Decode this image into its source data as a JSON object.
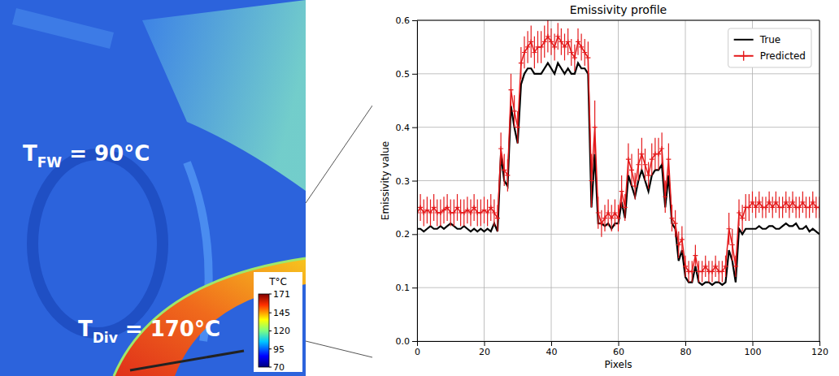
{
  "chart_data": [
    {
      "type": "image",
      "annotations": [
        {
          "main": "T",
          "sub": "FW",
          "text": " = 90°C"
        },
        {
          "main": "T",
          "sub": "Div",
          "text": " = 170°C"
        }
      ],
      "colorbar": {
        "title": "T°C",
        "range": [
          70,
          171
        ],
        "ticks": [
          171,
          145,
          120,
          95,
          70
        ]
      }
    },
    {
      "type": "line",
      "title": "Emissivity profile",
      "x_label": "Pixels",
      "y_label": "Emissivity value",
      "x": [
        0,
        1,
        2,
        3,
        4,
        5,
        6,
        7,
        8,
        9,
        10,
        11,
        12,
        13,
        14,
        15,
        16,
        17,
        18,
        19,
        20,
        21,
        22,
        23,
        24,
        25,
        26,
        27,
        28,
        29,
        30,
        31,
        32,
        33,
        34,
        35,
        36,
        37,
        38,
        39,
        40,
        41,
        42,
        43,
        44,
        45,
        46,
        47,
        48,
        49,
        50,
        51,
        52,
        53,
        54,
        55,
        56,
        57,
        58,
        59,
        60,
        61,
        62,
        63,
        64,
        65,
        66,
        67,
        68,
        69,
        70,
        71,
        72,
        73,
        74,
        75,
        76,
        77,
        78,
        79,
        80,
        81,
        82,
        83,
        84,
        85,
        86,
        87,
        88,
        89,
        90,
        91,
        92,
        93,
        94,
        95,
        96,
        97,
        98,
        99,
        100,
        101,
        102,
        103,
        104,
        105,
        106,
        107,
        108,
        109,
        110,
        111,
        112,
        113,
        114,
        115,
        116,
        117,
        118,
        119,
        120
      ],
      "series": [
        {
          "name": "True",
          "color": "#000000",
          "line_style": "solid",
          "values": [
            0.21,
            0.21,
            0.205,
            0.21,
            0.215,
            0.21,
            0.21,
            0.215,
            0.21,
            0.215,
            0.22,
            0.215,
            0.21,
            0.21,
            0.215,
            0.21,
            0.205,
            0.21,
            0.205,
            0.21,
            0.205,
            0.21,
            0.205,
            0.22,
            0.205,
            0.35,
            0.3,
            0.29,
            0.44,
            0.4,
            0.37,
            0.48,
            0.5,
            0.51,
            0.51,
            0.5,
            0.5,
            0.5,
            0.51,
            0.52,
            0.51,
            0.5,
            0.52,
            0.51,
            0.5,
            0.51,
            0.5,
            0.5,
            0.52,
            0.51,
            0.51,
            0.5,
            0.25,
            0.35,
            0.22,
            0.22,
            0.215,
            0.22,
            0.21,
            0.22,
            0.22,
            0.26,
            0.23,
            0.31,
            0.29,
            0.27,
            0.3,
            0.32,
            0.3,
            0.28,
            0.31,
            0.32,
            0.32,
            0.33,
            0.25,
            0.31,
            0.22,
            0.21,
            0.15,
            0.17,
            0.12,
            0.11,
            0.11,
            0.14,
            0.11,
            0.105,
            0.11,
            0.11,
            0.105,
            0.11,
            0.11,
            0.105,
            0.11,
            0.17,
            0.15,
            0.11,
            0.21,
            0.2,
            0.21,
            0.21,
            0.21,
            0.21,
            0.215,
            0.21,
            0.21,
            0.215,
            0.215,
            0.21,
            0.21,
            0.215,
            0.22,
            0.215,
            0.215,
            0.22,
            0.21,
            0.21,
            0.215,
            0.205,
            0.21,
            0.205,
            0.2
          ]
        },
        {
          "name": "Predicted",
          "color": "#e41a1c",
          "line_style": "solid",
          "marker": "plus",
          "values": [
            0.24,
            0.25,
            0.24,
            0.245,
            0.24,
            0.25,
            0.24,
            0.24,
            0.245,
            0.25,
            0.24,
            0.24,
            0.25,
            0.24,
            0.24,
            0.245,
            0.24,
            0.25,
            0.24,
            0.24,
            0.245,
            0.24,
            0.25,
            0.24,
            0.23,
            0.36,
            0.32,
            0.31,
            0.47,
            0.43,
            0.4,
            0.52,
            0.54,
            0.55,
            0.56,
            0.54,
            0.55,
            0.55,
            0.56,
            0.57,
            0.56,
            0.55,
            0.57,
            0.56,
            0.55,
            0.56,
            0.54,
            0.53,
            0.56,
            0.55,
            0.54,
            0.53,
            0.3,
            0.4,
            0.24,
            0.22,
            0.23,
            0.24,
            0.23,
            0.24,
            0.23,
            0.28,
            0.25,
            0.34,
            0.32,
            0.29,
            0.33,
            0.35,
            0.33,
            0.31,
            0.34,
            0.35,
            0.35,
            0.36,
            0.27,
            0.34,
            0.23,
            0.22,
            0.18,
            0.19,
            0.14,
            0.13,
            0.13,
            0.16,
            0.13,
            0.13,
            0.14,
            0.13,
            0.13,
            0.14,
            0.13,
            0.13,
            0.14,
            0.21,
            0.18,
            0.14,
            0.24,
            0.23,
            0.25,
            0.25,
            0.26,
            0.25,
            0.26,
            0.25,
            0.25,
            0.26,
            0.25,
            0.26,
            0.25,
            0.25,
            0.26,
            0.25,
            0.26,
            0.25,
            0.25,
            0.26,
            0.25,
            0.25,
            0.26,
            0.25,
            0.25
          ],
          "errors": [
            0.025,
            0.025,
            0.025,
            0.025,
            0.025,
            0.025,
            0.025,
            0.025,
            0.025,
            0.025,
            0.025,
            0.025,
            0.025,
            0.025,
            0.025,
            0.025,
            0.025,
            0.025,
            0.025,
            0.025,
            0.025,
            0.025,
            0.025,
            0.025,
            0.025,
            0.03,
            0.03,
            0.03,
            0.03,
            0.03,
            0.03,
            0.03,
            0.03,
            0.03,
            0.03,
            0.03,
            0.03,
            0.03,
            0.03,
            0.03,
            0.025,
            0.025,
            0.025,
            0.025,
            0.025,
            0.025,
            0.025,
            0.025,
            0.025,
            0.025,
            0.025,
            0.03,
            0.05,
            0.05,
            0.03,
            0.025,
            0.025,
            0.025,
            0.025,
            0.025,
            0.025,
            0.03,
            0.025,
            0.03,
            0.03,
            0.025,
            0.03,
            0.03,
            0.03,
            0.025,
            0.03,
            0.03,
            0.03,
            0.03,
            0.03,
            0.03,
            0.025,
            0.025,
            0.025,
            0.025,
            0.02,
            0.02,
            0.02,
            0.02,
            0.02,
            0.02,
            0.02,
            0.02,
            0.02,
            0.02,
            0.02,
            0.02,
            0.02,
            0.03,
            0.03,
            0.02,
            0.025,
            0.025,
            0.025,
            0.025,
            0.02,
            0.02,
            0.02,
            0.02,
            0.02,
            0.02,
            0.02,
            0.02,
            0.02,
            0.02,
            0.02,
            0.02,
            0.02,
            0.02,
            0.02,
            0.02,
            0.02,
            0.02,
            0.02,
            0.02,
            0.02
          ]
        }
      ],
      "xlim": [
        0,
        120
      ],
      "ylim": [
        0,
        0.6
      ],
      "xticks": [
        0,
        20,
        40,
        60,
        80,
        100,
        120
      ],
      "yticks": [
        {
          "value": 0,
          "label": "0.0"
        },
        {
          "value": 0.1,
          "label": "0.1"
        },
        {
          "value": 0.2,
          "label": "0.2"
        },
        {
          "value": 0.3,
          "label": "0.3"
        },
        {
          "value": 0.4,
          "label": "0.4"
        },
        {
          "value": 0.5,
          "label": "0.5"
        },
        {
          "value": 0.6,
          "label": "0.6"
        }
      ],
      "grid": true,
      "legend": "upper right"
    }
  ]
}
